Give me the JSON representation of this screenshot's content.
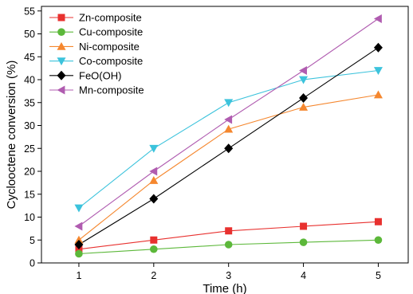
{
  "chart_data": {
    "type": "line",
    "title": "",
    "xlabel": "Time (h)",
    "ylabel": "Cyclooctene conversion (%)",
    "xlim": [
      0.5,
      5.4
    ],
    "ylim": [
      0,
      56
    ],
    "xticks": [
      1,
      2,
      3,
      4,
      5
    ],
    "yticks": [
      0,
      5,
      10,
      15,
      20,
      25,
      30,
      35,
      40,
      45,
      50,
      55
    ],
    "grid": false,
    "legend_position": "top-left",
    "x": [
      1,
      2,
      3,
      4,
      5
    ],
    "series": [
      {
        "name": "Zn-composite",
        "color": "#e8312f",
        "marker": "square",
        "values": [
          3,
          5,
          7,
          8,
          9
        ]
      },
      {
        "name": "Cu-composite",
        "color": "#5cb83a",
        "marker": "circle",
        "values": [
          2,
          3,
          4,
          4.5,
          5
        ]
      },
      {
        "name": "Ni-composite",
        "color": "#f5872e",
        "marker": "triangle-up",
        "values": [
          5,
          18,
          29.2,
          34,
          36.7
        ]
      },
      {
        "name": "Co-composite",
        "color": "#3cc3dc",
        "marker": "triangle-down",
        "values": [
          12,
          25,
          35,
          40,
          42
        ]
      },
      {
        "name": "FeO(OH)",
        "color": "#000000",
        "marker": "diamond",
        "values": [
          4,
          14,
          25,
          36,
          47
        ]
      },
      {
        "name": "Mn-composite",
        "color": "#b05cb0",
        "marker": "triangle-left",
        "values": [
          8,
          20,
          31.3,
          42,
          53.3
        ]
      }
    ]
  }
}
